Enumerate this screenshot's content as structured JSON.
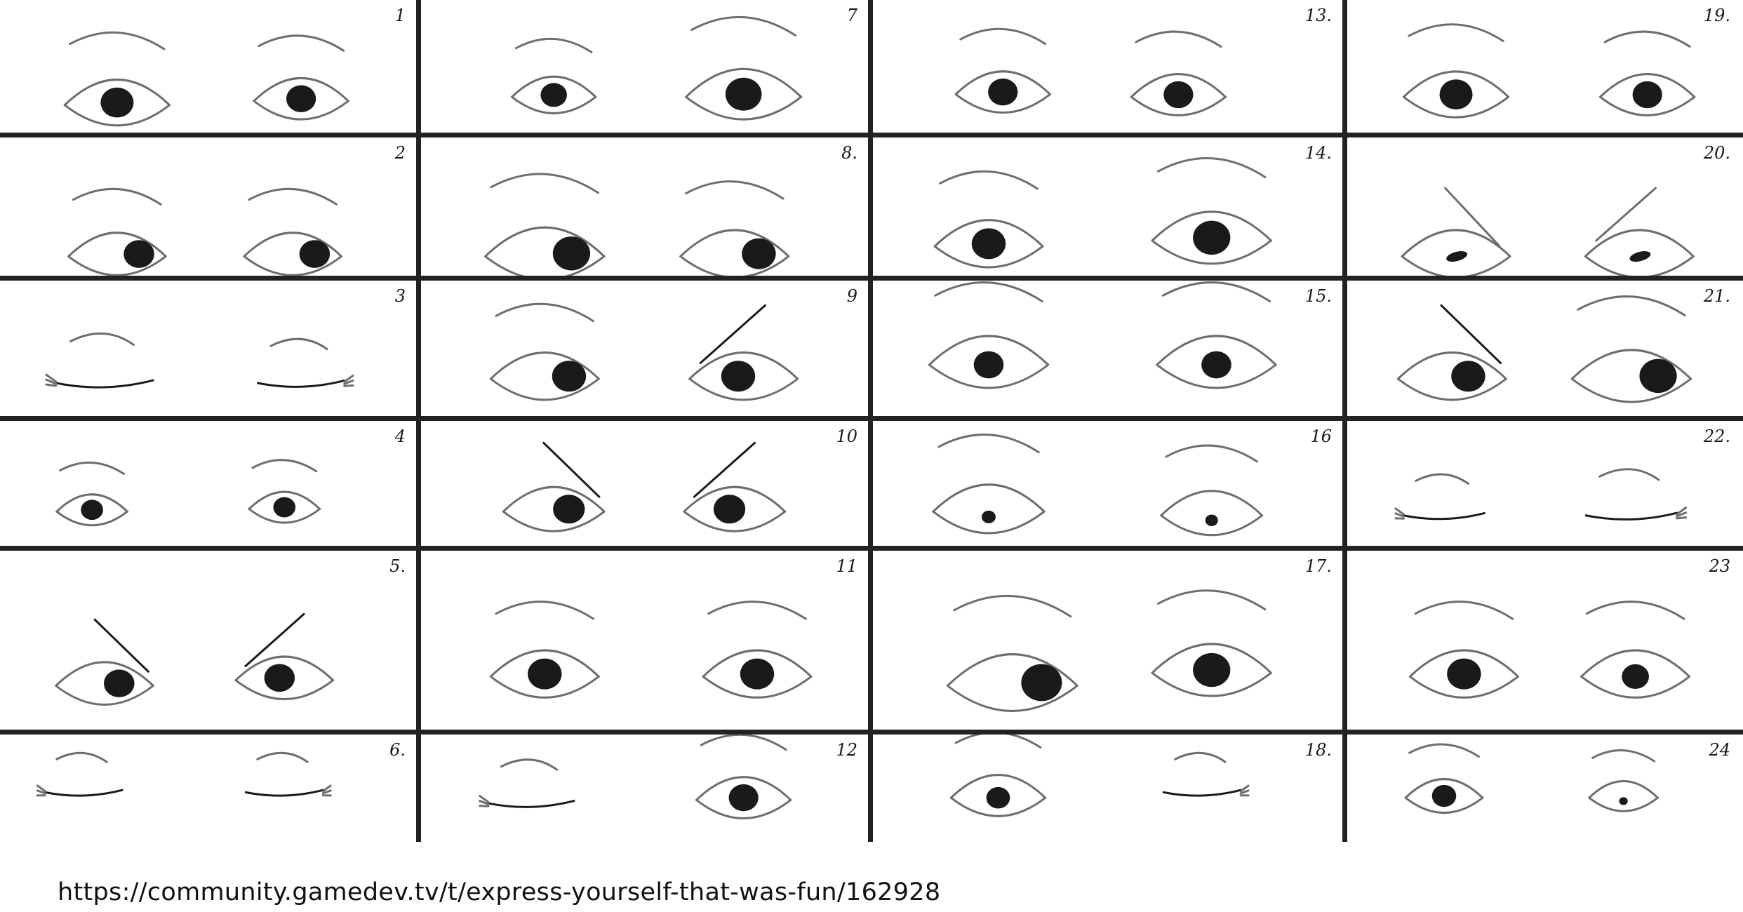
{
  "source_caption": "https://community.gamedev.tv/t/express-yourself-that-was-fun/162928",
  "ink_color": "#1a1a1a",
  "line_color": "#6e6e6e",
  "grid_color": "#222222",
  "panels": [
    {
      "label": "1"
    },
    {
      "label": "7"
    },
    {
      "label": "13."
    },
    {
      "label": "19."
    },
    {
      "label": "2"
    },
    {
      "label": "8."
    },
    {
      "label": "14."
    },
    {
      "label": "20."
    },
    {
      "label": "3"
    },
    {
      "label": "9"
    },
    {
      "label": "15."
    },
    {
      "label": "21."
    },
    {
      "label": "4"
    },
    {
      "label": "10"
    },
    {
      "label": "16"
    },
    {
      "label": "22."
    },
    {
      "label": "5."
    },
    {
      "label": "11"
    },
    {
      "label": "17."
    },
    {
      "label": "23"
    },
    {
      "label": "6."
    },
    {
      "label": "12"
    },
    {
      "label": "18."
    },
    {
      "label": "24"
    }
  ]
}
